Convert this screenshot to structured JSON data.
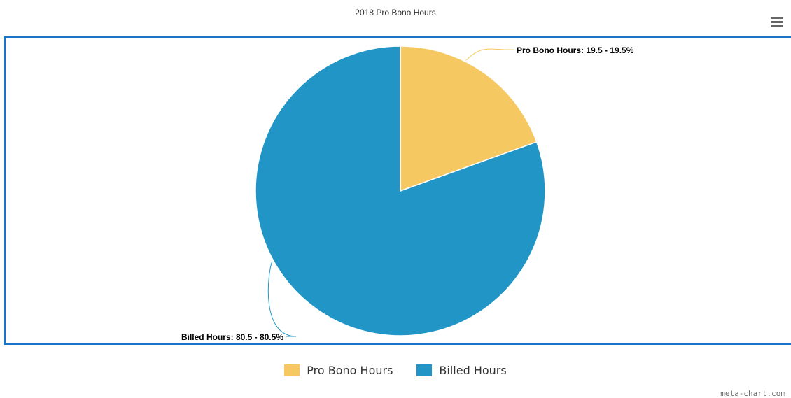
{
  "menu_icon": "hamburger-menu-icon",
  "chart_data": {
    "type": "pie",
    "title": "2018 Pro Bono Hours",
    "slices": [
      {
        "name": "Pro Bono Hours",
        "value": 19.5,
        "percent": 19.5,
        "label": "Pro Bono Hours: 19.5 - 19.5%",
        "color": "#f6c862"
      },
      {
        "name": "Billed Hours",
        "value": 80.5,
        "percent": 80.5,
        "label": "Billed Hours: 80.5 - 80.5%",
        "color": "#2196c6"
      }
    ],
    "legend": {
      "position": "bottom-center",
      "items": [
        "Pro Bono Hours",
        "Billed Hours"
      ]
    }
  },
  "credit": "meta-chart.com"
}
